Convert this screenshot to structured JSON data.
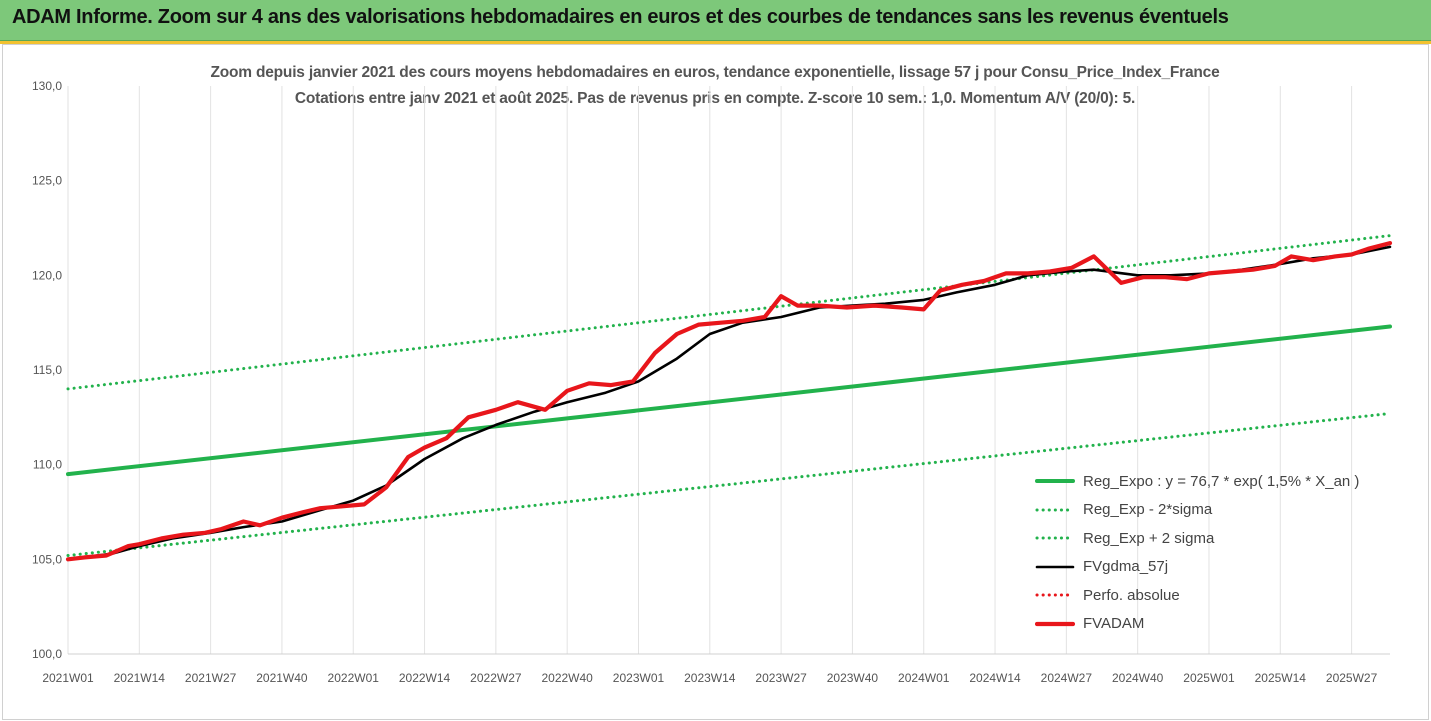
{
  "header": {
    "title": "ADAM Informe. Zoom sur 4 ans des valorisations hebdomadaires en euros et des courbes de tendances sans les revenus éventuels"
  },
  "chart_data": {
    "type": "line",
    "title_line1": "Zoom depuis janvier 2021 des cours moyens hebdomadaires en euros, tendance exponentielle, lissage 57 j pour Consu_Price_Index_France",
    "title_line2": "Cotations entre janv 2021 et août 2025.  Pas de revenus pris en compte. Z-score 10 sem.: 1,0. Momentum A/V (20/0): 5.",
    "ylim": [
      100,
      130
    ],
    "yticks": [
      "100,0",
      "105,0",
      "110,0",
      "115,0",
      "120,0",
      "125,0",
      "130,0"
    ],
    "ytick_values": [
      100,
      105,
      110,
      115,
      120,
      125,
      130
    ],
    "xlim": [
      1,
      242
    ],
    "x_tick_labels": [
      "2021W01",
      "2021W14",
      "2021W27",
      "2021W40",
      "2022W01",
      "2022W14",
      "2022W27",
      "2022W40",
      "2023W01",
      "2023W14",
      "2023W27",
      "2023W40",
      "2024W01",
      "2024W14",
      "2024W27",
      "2024W40",
      "2025W01",
      "2025W14",
      "2025W27"
    ],
    "x_tick_positions": [
      1,
      14,
      27,
      40,
      53,
      66,
      79,
      92,
      105,
      118,
      131,
      144,
      157,
      170,
      183,
      196,
      209,
      222,
      235
    ],
    "grid": "vertical",
    "legend_position": "bottom-right",
    "series": [
      {
        "name": "Reg_Expo : y = 76,7 * exp( 1,5% *  X_an )",
        "style": "solid",
        "color": "#22b24c",
        "x": [
          1,
          242
        ],
        "y": [
          109.5,
          117.3
        ]
      },
      {
        "name": "Reg_Exp - 2*sigma",
        "style": "dotted",
        "color": "#22b24c",
        "x": [
          1,
          242
        ],
        "y": [
          105.2,
          112.7
        ]
      },
      {
        "name": "Reg_Exp + 2 sigma",
        "style": "dotted",
        "color": "#22b24c",
        "x": [
          1,
          242
        ],
        "y": [
          114.0,
          122.1
        ]
      },
      {
        "name": "FVgdma_57j",
        "style": "solid",
        "color": "#000000",
        "x": [
          1,
          9,
          14,
          20,
          27,
          33,
          40,
          47,
          53,
          59,
          66,
          73,
          79,
          86,
          92,
          99,
          105,
          112,
          118,
          124,
          131,
          138,
          144,
          150,
          157,
          163,
          170,
          176,
          183,
          188,
          196,
          202,
          209,
          215,
          222,
          228,
          235,
          242
        ],
        "y": [
          105.0,
          105.3,
          105.7,
          106.1,
          106.4,
          106.7,
          107.0,
          107.6,
          108.1,
          108.9,
          110.3,
          111.4,
          112.1,
          112.8,
          113.3,
          113.8,
          114.4,
          115.6,
          116.9,
          117.5,
          117.8,
          118.3,
          118.4,
          118.5,
          118.7,
          119.1,
          119.5,
          120.0,
          120.2,
          120.3,
          120.0,
          120.0,
          120.1,
          120.3,
          120.6,
          120.9,
          121.1,
          121.5
        ]
      },
      {
        "name": "Perfo. absolue",
        "style": "dotted",
        "color": "#e8161b",
        "x": [],
        "y": []
      },
      {
        "name": "FVADAM",
        "style": "solid-thick",
        "color": "#e8161b",
        "x": [
          1,
          4,
          8,
          12,
          14,
          18,
          22,
          26,
          29,
          33,
          36,
          40,
          44,
          47,
          51,
          55,
          59,
          63,
          66,
          70,
          74,
          79,
          83,
          88,
          92,
          96,
          100,
          104,
          108,
          112,
          116,
          120,
          124,
          128,
          131,
          134,
          138,
          143,
          148,
          153,
          157,
          160,
          164,
          168,
          172,
          176,
          180,
          184,
          188,
          193,
          197,
          201,
          205,
          209,
          213,
          217,
          221,
          224,
          228,
          232,
          235,
          238,
          242
        ],
        "y": [
          105.0,
          105.1,
          105.2,
          105.7,
          105.8,
          106.1,
          106.3,
          106.4,
          106.6,
          107.0,
          106.8,
          107.2,
          107.5,
          107.7,
          107.8,
          107.9,
          108.8,
          110.4,
          110.9,
          111.4,
          112.5,
          112.9,
          113.3,
          112.9,
          113.9,
          114.3,
          114.2,
          114.4,
          115.9,
          116.9,
          117.4,
          117.5,
          117.6,
          117.8,
          118.9,
          118.4,
          118.4,
          118.3,
          118.4,
          118.3,
          118.2,
          119.2,
          119.5,
          119.7,
          120.1,
          120.1,
          120.2,
          120.4,
          121.0,
          119.6,
          119.9,
          119.9,
          119.8,
          120.1,
          120.2,
          120.3,
          120.5,
          121.0,
          120.8,
          121.0,
          121.1,
          121.4,
          121.7
        ]
      }
    ]
  }
}
